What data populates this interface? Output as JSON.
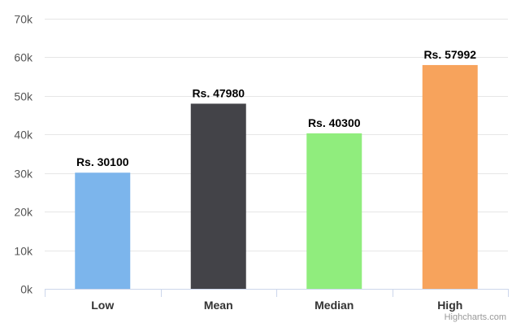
{
  "chart_data": {
    "type": "bar",
    "categories": [
      "Low",
      "Mean",
      "Median",
      "High"
    ],
    "values": [
      30100,
      47980,
      40300,
      57992
    ],
    "data_labels": [
      "Rs. 30100",
      "Rs. 47980",
      "Rs. 40300",
      "Rs. 57992"
    ],
    "colors": [
      "#7cb5ec",
      "#434348",
      "#90ed7d",
      "#f7a35c"
    ],
    "y_ticks": [
      "0k",
      "10k",
      "20k",
      "30k",
      "40k",
      "50k",
      "60k",
      "70k"
    ],
    "ylim": [
      0,
      70000
    ],
    "grid": true,
    "legend": "none"
  },
  "credit": "Highcharts.com"
}
